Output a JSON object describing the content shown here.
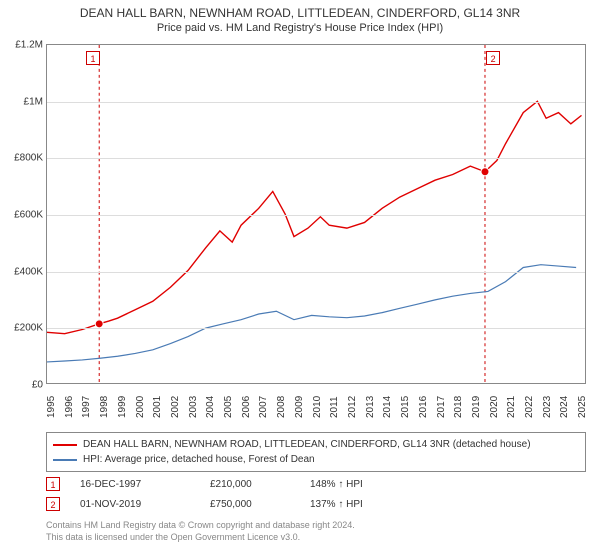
{
  "title": {
    "main": "DEAN HALL BARN, NEWNHAM ROAD, LITTLEDEAN, CINDERFORD, GL14 3NR",
    "sub": "Price paid vs. HM Land Registry's House Price Index (HPI)"
  },
  "chart": {
    "type": "line",
    "xlim": [
      1995,
      2025.5
    ],
    "ylim": [
      0,
      1200000
    ],
    "ytick_step": 200000,
    "ytick_labels": [
      "£0",
      "£200K",
      "£400K",
      "£600K",
      "£800K",
      "£1M",
      "£1.2M"
    ],
    "xtick_years": [
      1995,
      1996,
      1997,
      1998,
      1999,
      2000,
      2001,
      2002,
      2003,
      2004,
      2005,
      2006,
      2007,
      2008,
      2009,
      2010,
      2011,
      2012,
      2013,
      2014,
      2015,
      2016,
      2017,
      2018,
      2019,
      2020,
      2021,
      2022,
      2023,
      2024,
      2025
    ],
    "grid_color": "#dddddd",
    "background_color": "#ffffff",
    "axis_color": "#888888",
    "series": [
      {
        "name": "property",
        "label": "DEAN HALL BARN, NEWNHAM ROAD, LITTLEDEAN, CINDERFORD, GL14 3NR (detached house)",
        "color": "#e00000",
        "line_width": 1.4,
        "data": [
          [
            1995,
            180000
          ],
          [
            1996,
            175000
          ],
          [
            1997,
            190000
          ],
          [
            1997.96,
            210000
          ],
          [
            1998.5,
            220000
          ],
          [
            1999,
            230000
          ],
          [
            2000,
            260000
          ],
          [
            2001,
            290000
          ],
          [
            2002,
            340000
          ],
          [
            2003,
            400000
          ],
          [
            2004,
            480000
          ],
          [
            2004.8,
            540000
          ],
          [
            2005.5,
            500000
          ],
          [
            2006,
            560000
          ],
          [
            2007,
            620000
          ],
          [
            2007.8,
            680000
          ],
          [
            2008.5,
            600000
          ],
          [
            2009,
            520000
          ],
          [
            2009.8,
            550000
          ],
          [
            2010.5,
            590000
          ],
          [
            2011,
            560000
          ],
          [
            2012,
            550000
          ],
          [
            2013,
            570000
          ],
          [
            2014,
            620000
          ],
          [
            2015,
            660000
          ],
          [
            2016,
            690000
          ],
          [
            2017,
            720000
          ],
          [
            2018,
            740000
          ],
          [
            2019,
            770000
          ],
          [
            2019.83,
            750000
          ],
          [
            2020.5,
            790000
          ],
          [
            2021,
            850000
          ],
          [
            2022,
            960000
          ],
          [
            2022.8,
            1000000
          ],
          [
            2023.3,
            940000
          ],
          [
            2024,
            960000
          ],
          [
            2024.7,
            920000
          ],
          [
            2025.3,
            950000
          ]
        ]
      },
      {
        "name": "hpi",
        "label": "HPI: Average price, detached house, Forest of Dean",
        "color": "#4a7bb5",
        "line_width": 1.2,
        "data": [
          [
            1995,
            75000
          ],
          [
            1996,
            78000
          ],
          [
            1997,
            82000
          ],
          [
            1998,
            88000
          ],
          [
            1999,
            95000
          ],
          [
            2000,
            105000
          ],
          [
            2001,
            118000
          ],
          [
            2002,
            140000
          ],
          [
            2003,
            165000
          ],
          [
            2004,
            195000
          ],
          [
            2005,
            210000
          ],
          [
            2006,
            225000
          ],
          [
            2007,
            245000
          ],
          [
            2008,
            255000
          ],
          [
            2009,
            225000
          ],
          [
            2010,
            240000
          ],
          [
            2011,
            235000
          ],
          [
            2012,
            232000
          ],
          [
            2013,
            238000
          ],
          [
            2014,
            250000
          ],
          [
            2015,
            265000
          ],
          [
            2016,
            280000
          ],
          [
            2017,
            295000
          ],
          [
            2018,
            308000
          ],
          [
            2019,
            318000
          ],
          [
            2020,
            325000
          ],
          [
            2021,
            360000
          ],
          [
            2022,
            410000
          ],
          [
            2023,
            420000
          ],
          [
            2024,
            415000
          ],
          [
            2025,
            410000
          ]
        ]
      }
    ],
    "markers": [
      {
        "id": "1",
        "x": 1997.96,
        "y": 210000,
        "box_x": 1997.6
      },
      {
        "id": "2",
        "x": 2019.83,
        "y": 750000,
        "box_x": 2020.2
      }
    ]
  },
  "legend": {
    "rows": [
      {
        "color": "#e00000",
        "text": "DEAN HALL BARN, NEWNHAM ROAD, LITTLEDEAN, CINDERFORD, GL14 3NR (detached house)"
      },
      {
        "color": "#4a7bb5",
        "text": "HPI: Average price, detached house, Forest of Dean"
      }
    ]
  },
  "callouts": [
    {
      "id": "1",
      "date": "16-DEC-1997",
      "price": "£210,000",
      "pct": "148% ↑ HPI"
    },
    {
      "id": "2",
      "date": "01-NOV-2019",
      "price": "£750,000",
      "pct": "137% ↑ HPI"
    }
  ],
  "footer": {
    "line1": "Contains HM Land Registry data © Crown copyright and database right 2024.",
    "line2": "This data is licensed under the Open Government Licence v3.0."
  }
}
